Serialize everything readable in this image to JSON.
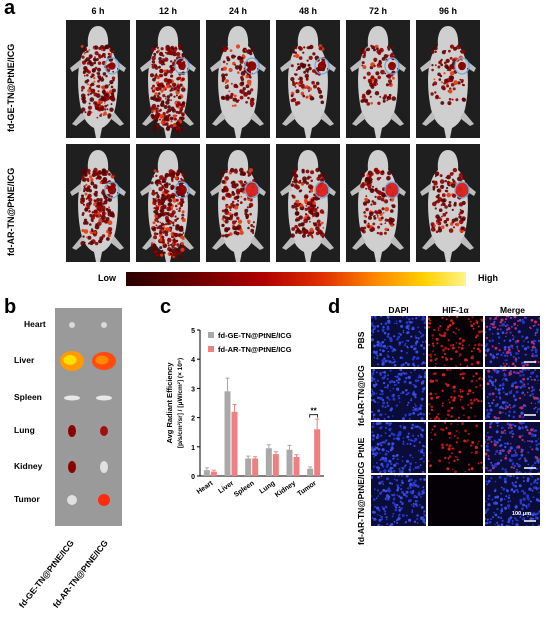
{
  "panel_a": {
    "letter": "a",
    "time_points": [
      "6 h",
      "12 h",
      "24 h",
      "48 h",
      "72 h",
      "96 h"
    ],
    "rows": [
      {
        "label": "fd-GE-TN@PtNE/ICG",
        "signal": [
          0.55,
          0.9,
          0.25,
          0.22,
          0.2,
          0.18
        ],
        "tumor": [
          0.15,
          0.2,
          0.35,
          0.3,
          0.25,
          0.25
        ]
      },
      {
        "label": "fd-AR-TN@PtNE/ICG",
        "signal": [
          0.6,
          0.95,
          0.4,
          0.45,
          0.35,
          0.3
        ],
        "tumor": [
          0.3,
          0.45,
          0.8,
          0.8,
          0.85,
          0.85
        ]
      }
    ],
    "colorbar": {
      "low_label": "Low",
      "high_label": "High"
    }
  },
  "panel_b": {
    "letter": "b",
    "organs": [
      "Heart",
      "Liver",
      "Spleen",
      "Lung",
      "Kidney",
      "Tumor"
    ],
    "groups": [
      "fd-GE-TN@PtNE/ICG",
      "fd-AR-TN@PtNE/ICG"
    ]
  },
  "panel_c": {
    "letter": "c",
    "chart_data": {
      "type": "bar",
      "categories": [
        "Heart",
        "Liver",
        "Spleen",
        "Lung",
        "Kidney",
        "Tumor"
      ],
      "series": [
        {
          "name": "fd-GE-TN@PtNE/ICG",
          "color": "#a9a9a9",
          "values": [
            0.2,
            2.9,
            0.6,
            0.95,
            0.9,
            0.25
          ],
          "errors": [
            0.08,
            0.45,
            0.08,
            0.12,
            0.15,
            0.06
          ]
        },
        {
          "name": "fd-AR-TN@PtNE/ICG",
          "color": "#f08080",
          "values": [
            0.15,
            2.2,
            0.6,
            0.75,
            0.65,
            1.6
          ],
          "errors": [
            0.05,
            0.25,
            0.06,
            0.08,
            0.08,
            0.35
          ]
        }
      ],
      "ylabel": "Avg Radiant Efficiency",
      "ylabel_units": "[p/s/cm²/sr] / [μW/cm²] (× 10⁹)",
      "ylim": [
        0,
        5
      ],
      "yticks": [
        0,
        1,
        2,
        3,
        4,
        5
      ],
      "annotation": {
        "text": "**",
        "category": "Tumor"
      }
    }
  },
  "panel_d": {
    "letter": "d",
    "columns": [
      "DAPI",
      "HIF-1α",
      "Merge"
    ],
    "rows": [
      {
        "label": "PBS",
        "hif": 0.8
      },
      {
        "label": "fd-AR-TN@ICG",
        "hif": 0.6
      },
      {
        "label": "PtNE",
        "hif": 0.5
      },
      {
        "label": "fd-AR-TN@PtNE/ICG",
        "hif": 0.0
      }
    ],
    "scale_bar": "100 μm"
  },
  "colors": {
    "tile_bg": "#1f1f1f",
    "dapi": "#1a2aa8",
    "hif": "#c01818",
    "organ_bg": "#9a9a9a"
  }
}
